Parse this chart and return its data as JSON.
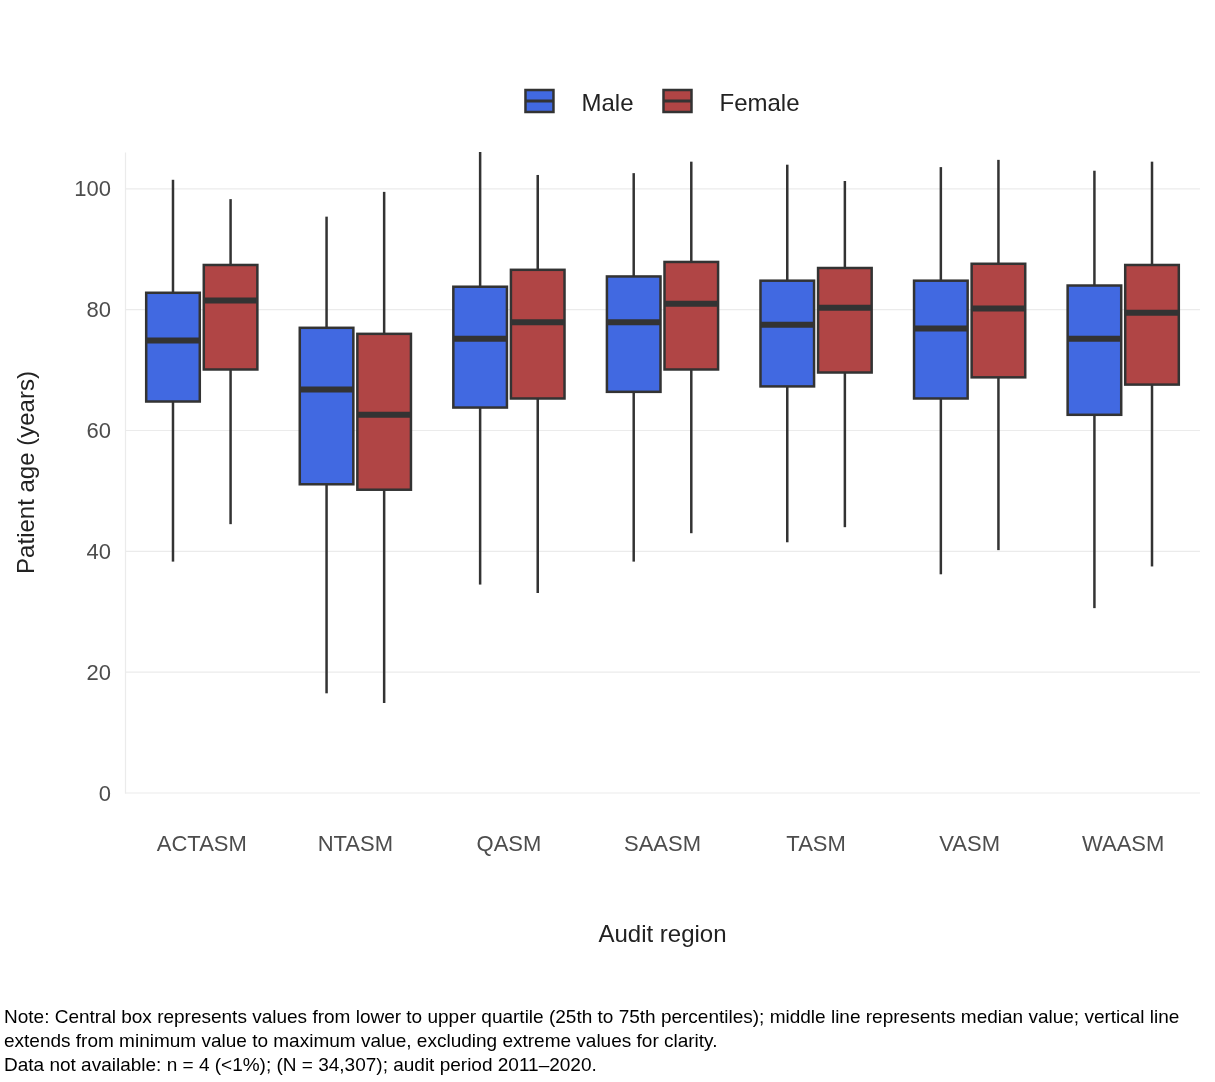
{
  "chart_data": {
    "type": "box",
    "xlabel": "Audit region",
    "ylabel": "Patient age (years)",
    "categories": [
      "ACTASM",
      "NTASM",
      "QASM",
      "SAASM",
      "TASM",
      "VASM",
      "WAASM"
    ],
    "ylim": [
      0,
      106.1
    ],
    "yticks": [
      0,
      20,
      40,
      60,
      80,
      100
    ],
    "grid": "y",
    "legend": "top",
    "series": [
      {
        "name": "Male",
        "color": "#4169e1",
        "boxes": [
          {
            "low": 38.3,
            "q1": 64.8,
            "median": 74.9,
            "q3": 82.8,
            "high": 101.5
          },
          {
            "low": 16.5,
            "q1": 51.1,
            "median": 66.8,
            "q3": 77.0,
            "high": 95.4
          },
          {
            "low": 34.5,
            "q1": 63.8,
            "median": 75.2,
            "q3": 83.8,
            "high": 106.1
          },
          {
            "low": 38.3,
            "q1": 66.4,
            "median": 77.9,
            "q3": 85.5,
            "high": 102.6
          },
          {
            "low": 41.5,
            "q1": 67.3,
            "median": 77.5,
            "q3": 84.8,
            "high": 104.0
          },
          {
            "low": 36.2,
            "q1": 65.3,
            "median": 76.9,
            "q3": 84.8,
            "high": 103.6
          },
          {
            "low": 30.6,
            "q1": 62.6,
            "median": 75.2,
            "q3": 84.0,
            "high": 103.0
          }
        ]
      },
      {
        "name": "Female",
        "color": "#b04545",
        "boxes": [
          {
            "low": 44.5,
            "q1": 70.1,
            "median": 81.5,
            "q3": 87.4,
            "high": 98.3
          },
          {
            "low": 14.9,
            "q1": 50.2,
            "median": 62.6,
            "q3": 76.0,
            "high": 99.5
          },
          {
            "low": 33.1,
            "q1": 65.3,
            "median": 77.9,
            "q3": 86.6,
            "high": 102.3
          },
          {
            "low": 43.0,
            "q1": 70.1,
            "median": 81.0,
            "q3": 87.9,
            "high": 104.5
          },
          {
            "low": 44.0,
            "q1": 69.6,
            "median": 80.3,
            "q3": 86.9,
            "high": 101.3
          },
          {
            "low": 40.2,
            "q1": 68.8,
            "median": 80.2,
            "q3": 87.6,
            "high": 104.8
          },
          {
            "low": 37.5,
            "q1": 67.6,
            "median": 79.5,
            "q3": 87.4,
            "high": 104.5
          }
        ]
      }
    ],
    "annotations": [
      "Note: Central box represents values from lower to upper quartile (25th to 75th percentiles); middle line represents median value; vertical line extends from minimum value to maximum value, excluding extreme values for clarity.",
      "Data not available: n = 4 (<1%); (N = 34,307); audit period 2011–2020."
    ]
  }
}
